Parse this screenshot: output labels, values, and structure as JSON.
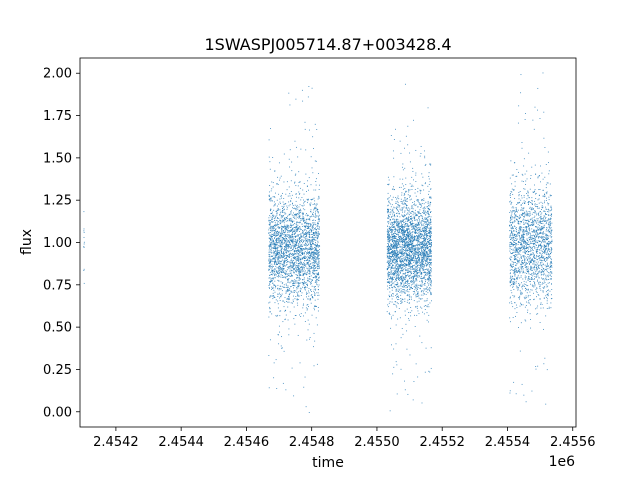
{
  "chart_data": {
    "type": "scatter",
    "title": "1SWASPJ005714.87+003428.4",
    "xlabel": "time",
    "ylabel": "flux",
    "x_offset_label": "1e6",
    "xlim": [
      2.45409,
      2.45561
    ],
    "ylim": [
      -0.09,
      2.09
    ],
    "x_ticks": [
      {
        "value": 2.4542,
        "label": "2.4542"
      },
      {
        "value": 2.4544,
        "label": "2.4544"
      },
      {
        "value": 2.4546,
        "label": "2.4546"
      },
      {
        "value": 2.4548,
        "label": "2.4548"
      },
      {
        "value": 2.455,
        "label": "2.4550"
      },
      {
        "value": 2.4552,
        "label": "2.4552"
      },
      {
        "value": 2.4554,
        "label": "2.4554"
      },
      {
        "value": 2.4556,
        "label": "2.4556"
      }
    ],
    "y_ticks": [
      {
        "value": 0.0,
        "label": "0.00"
      },
      {
        "value": 0.25,
        "label": "0.25"
      },
      {
        "value": 0.5,
        "label": "0.50"
      },
      {
        "value": 0.75,
        "label": "0.75"
      },
      {
        "value": 1.0,
        "label": "1.00"
      },
      {
        "value": 1.25,
        "label": "1.25"
      },
      {
        "value": 1.5,
        "label": "1.50"
      },
      {
        "value": 1.75,
        "label": "1.75"
      },
      {
        "value": 2.0,
        "label": "2.00"
      }
    ],
    "grid": false,
    "legend": "none",
    "marker_color": "#1f77b4",
    "series": [
      {
        "clusters": [
          {
            "x_range": [
              2.4541,
              2.454102
            ],
            "y_center": 1.0,
            "y_spread": 0.15,
            "count": 12
          },
          {
            "x_range": [
              2.454667,
              2.454823
            ],
            "y_center": 0.96,
            "y_spread": 0.16,
            "count": 2600
          },
          {
            "x_range": [
              2.45503,
              2.455166
            ],
            "y_center": 0.97,
            "y_spread": 0.15,
            "count": 3000
          },
          {
            "x_range": [
              2.455405,
              2.455535
            ],
            "y_center": 0.98,
            "y_spread": 0.17,
            "count": 1800
          }
        ]
      }
    ]
  }
}
